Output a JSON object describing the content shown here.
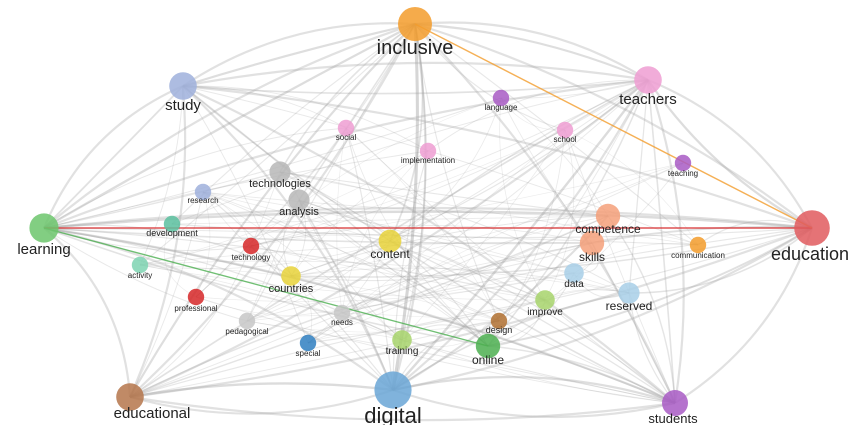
{
  "nodes": [
    {
      "id": "inclusive",
      "label": "inclusive",
      "color": "#f39c2c",
      "weight": 0.75
    },
    {
      "id": "study",
      "label": "study",
      "color": "#9fb0dc",
      "weight": 0.55
    },
    {
      "id": "teachers",
      "label": "teachers",
      "color": "#ee9ed2",
      "weight": 0.55
    },
    {
      "id": "language",
      "label": "language",
      "color": "#a85bc4",
      "weight": 0.2
    },
    {
      "id": "social",
      "label": "social",
      "color": "#ee9ed2",
      "weight": 0.2
    },
    {
      "id": "school",
      "label": "school",
      "color": "#ee9ed2",
      "weight": 0.2
    },
    {
      "id": "implementation",
      "label": "implementation",
      "color": "#ee9ed2",
      "weight": 0.2
    },
    {
      "id": "teaching",
      "label": "teaching",
      "color": "#a85bc4",
      "weight": 0.2
    },
    {
      "id": "technologies",
      "label": "technologies",
      "color": "#b7b7b7",
      "weight": 0.35
    },
    {
      "id": "research",
      "label": "research",
      "color": "#9fb0dc",
      "weight": 0.2
    },
    {
      "id": "analysis",
      "label": "analysis",
      "color": "#b7b7b7",
      "weight": 0.35
    },
    {
      "id": "development",
      "label": "development",
      "color": "#5bbf9f",
      "weight": 0.2
    },
    {
      "id": "learning",
      "label": "learning",
      "color": "#6cc56c",
      "weight": 0.6
    },
    {
      "id": "technology",
      "label": "technology",
      "color": "#d62728",
      "weight": 0.2
    },
    {
      "id": "content",
      "label": "content",
      "color": "#e8d23a",
      "weight": 0.4
    },
    {
      "id": "competence",
      "label": "competence",
      "color": "#f4a07a",
      "weight": 0.45
    },
    {
      "id": "skills",
      "label": "skills",
      "color": "#f4a07a",
      "weight": 0.45
    },
    {
      "id": "communication",
      "label": "communication",
      "color": "#f39c2c",
      "weight": 0.2
    },
    {
      "id": "education",
      "label": "education",
      "color": "#e05a5e",
      "weight": 0.8
    },
    {
      "id": "activity",
      "label": "activity",
      "color": "#7ed3b2",
      "weight": 0.2
    },
    {
      "id": "countries",
      "label": "countries",
      "color": "#e8d23a",
      "weight": 0.3
    },
    {
      "id": "data",
      "label": "data",
      "color": "#a8cfe8",
      "weight": 0.3
    },
    {
      "id": "professional",
      "label": "professional",
      "color": "#d62728",
      "weight": 0.2
    },
    {
      "id": "improve",
      "label": "improve",
      "color": "#a7d36b",
      "weight": 0.3
    },
    {
      "id": "reserved",
      "label": "reserved",
      "color": "#a8cfe8",
      "weight": 0.35
    },
    {
      "id": "pedagogical",
      "label": "pedagogical",
      "color": "#c7c7c7",
      "weight": 0.2
    },
    {
      "id": "needs",
      "label": "needs",
      "color": "#c7c7c7",
      "weight": 0.2
    },
    {
      "id": "design",
      "label": "design",
      "color": "#b07030",
      "weight": 0.2
    },
    {
      "id": "special",
      "label": "special",
      "color": "#2f7fc1",
      "weight": 0.2
    },
    {
      "id": "training",
      "label": "training",
      "color": "#a7d36b",
      "weight": 0.3
    },
    {
      "id": "online",
      "label": "online",
      "color": "#4caf50",
      "weight": 0.45
    },
    {
      "id": "educational",
      "label": "educational",
      "color": "#b5754b",
      "weight": 0.55
    },
    {
      "id": "digital",
      "label": "digital",
      "color": "#6aa6d6",
      "weight": 0.85
    },
    {
      "id": "students",
      "label": "students",
      "color": "#a85bc4",
      "weight": 0.5
    }
  ],
  "edges_highlighted": [
    {
      "from": "learning",
      "to": "education",
      "color": "#d62728"
    },
    {
      "from": "learning",
      "to": "online",
      "color": "#4caf50"
    },
    {
      "from": "inclusive",
      "to": "education",
      "color": "#f39c2c"
    }
  ]
}
